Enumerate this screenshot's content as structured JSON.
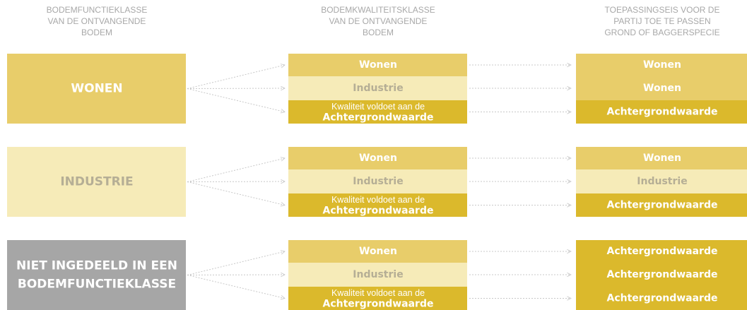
{
  "headers": [
    [
      "BODEMFUNCTIEKLASSE",
      "VAN DE ONTVANGENDE",
      "BODEM"
    ],
    [
      "BODEMKWALITEITSKLASSE",
      "VAN DE ONTVANGENDE",
      "BODEM"
    ],
    [
      "TOEPASSINGSEIS VOOR DE",
      "PARTIJ TOE TE PASSEN",
      "GROND OF BAGGERSPECIE"
    ]
  ],
  "groups": [
    {
      "label": [
        "WONEN"
      ],
      "quality": [
        [
          "Wonen"
        ],
        [
          "Industrie"
        ],
        [
          "Kwaliteit voldoet aan de",
          "Achtergrondwaarde"
        ]
      ],
      "requirement": [
        "Wonen",
        "Wonen",
        "Achtergrondwaarde"
      ]
    },
    {
      "label": [
        "INDUSTRIE"
      ],
      "quality": [
        [
          "Wonen"
        ],
        [
          "Industrie"
        ],
        [
          "Kwaliteit voldoet aan de",
          "Achtergrondwaarde"
        ]
      ],
      "requirement": [
        "Wonen",
        "Industrie",
        "Achtergrondwaarde"
      ]
    },
    {
      "label": [
        "NIET INGEDEELD IN EEN",
        "BODEMFUNCTIEKLASSE"
      ],
      "quality": [
        [
          "Wonen"
        ],
        [
          "Industrie"
        ],
        [
          "Kwaliteit voldoet aan de",
          "Achtergrondwaarde"
        ]
      ],
      "requirement": [
        "Achtergrondwaarde",
        "Achtergrondwaarde",
        "Achtergrondwaarde"
      ]
    }
  ]
}
